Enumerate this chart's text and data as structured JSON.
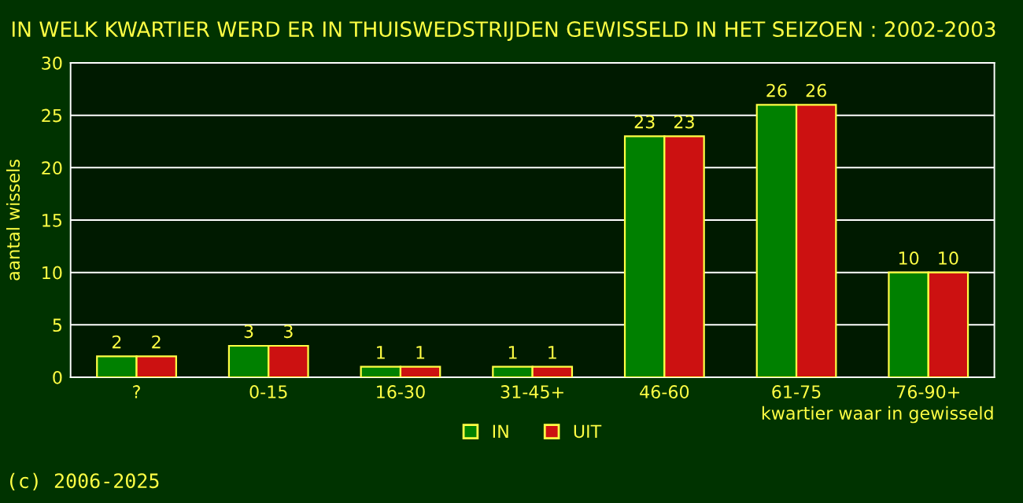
{
  "chart_data": {
    "type": "bar",
    "title": "IN WELK KWARTIER WERD ER IN THUISWEDSTRIJDEN GEWISSELD IN HET SEIZOEN : 2002-2003",
    "xlabel": "kwartier waar in gewisseld",
    "ylabel": "aantal wissels",
    "categories": [
      "?",
      "0-15",
      "16-30",
      "31-45+",
      "46-60",
      "61-75",
      "76-90+"
    ],
    "series": [
      {
        "name": "IN",
        "color": "#008000",
        "values": [
          2,
          3,
          1,
          1,
          23,
          26,
          10
        ]
      },
      {
        "name": "UIT",
        "color": "#cc1111",
        "values": [
          2,
          3,
          1,
          1,
          23,
          26,
          10
        ]
      }
    ],
    "ylim": [
      0,
      30
    ],
    "yticks": [
      0,
      5,
      10,
      15,
      20,
      25,
      30
    ],
    "grid": "y",
    "legend": "bottom",
    "data_labels": true,
    "annotations": [
      "(c) 2006-2025"
    ]
  }
}
